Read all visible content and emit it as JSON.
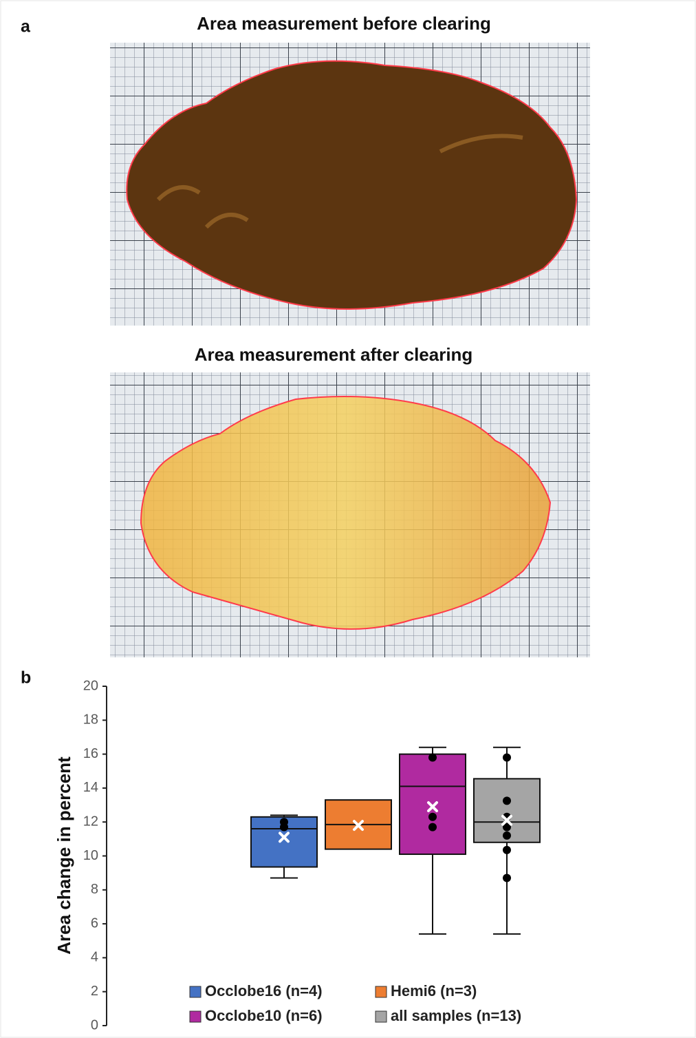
{
  "figure": {
    "panel_a_label": "a",
    "image_titles": [
      "Area measurement before clearing",
      "Area measurement after clearing"
    ]
  },
  "chart_data": {
    "type": "box",
    "panel_label": "b",
    "y_label": "Area change in percent",
    "ylim": [
      0,
      20
    ],
    "yticks": [
      0,
      2,
      4,
      6,
      8,
      10,
      12,
      14,
      16,
      18,
      20
    ],
    "series": [
      {
        "name": "Occlobe16 (n=4)",
        "color": "#4472c4",
        "whisker_low": 8.7,
        "q1": 9.35,
        "median": 11.6,
        "q3": 12.3,
        "whisker_high": 12.4,
        "mean": 11.1,
        "points": [
          12.0,
          11.7
        ]
      },
      {
        "name": "Hemi6 (n=3)",
        "color": "#ed7d31",
        "whisker_low": null,
        "q1": 10.4,
        "median": 11.85,
        "q3": 13.3,
        "whisker_high": null,
        "mean": 11.8,
        "points": []
      },
      {
        "name": "Occlobe10 (n=6)",
        "color": "#b02aa0",
        "whisker_low": 5.4,
        "q1": 10.1,
        "median": 14.1,
        "q3": 16.0,
        "whisker_high": 16.4,
        "mean": 12.9,
        "points": [
          15.8,
          12.3,
          11.7
        ]
      },
      {
        "name": "all samples (n=13)",
        "color": "#a5a5a5",
        "whisker_low": 5.4,
        "q1": 10.8,
        "median": 12.0,
        "q3": 14.55,
        "whisker_high": 16.4,
        "mean": 12.1,
        "points": [
          15.8,
          13.25,
          12.3,
          11.7,
          11.2,
          10.35,
          8.7
        ]
      }
    ]
  }
}
